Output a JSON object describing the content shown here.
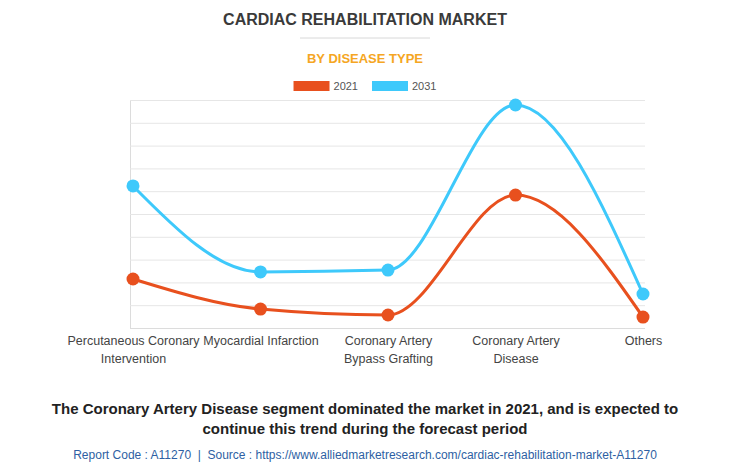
{
  "chart_data": {
    "type": "line",
    "title": "CARDIAC REHABILITATION MARKET",
    "subtitle": "BY DISEASE TYPE",
    "categories": [
      "Percutaneous Coronary Intervention",
      "Myocardial Infarction",
      "Coronary Artery Bypass Grafting",
      "Coronary Artery Disease",
      "Others"
    ],
    "series": [
      {
        "name": "2021",
        "color": "#e8501e",
        "values": [
          21.5,
          8.3,
          5.7,
          58.3,
          4.8
        ]
      },
      {
        "name": "2031",
        "color": "#3ec9fb",
        "values": [
          62.3,
          24.6,
          25.4,
          97.8,
          14.9
        ]
      }
    ],
    "ylim": [
      0,
      100
    ],
    "yticks": [
      0,
      10,
      20,
      30,
      40,
      50,
      60,
      70,
      80,
      90,
      100
    ],
    "grid": true,
    "tick_labels": "x",
    "legend": "top",
    "marker": "circle",
    "annotations": [
      "The Coronary Artery Disease segment dominated the market in 2021, and is expected to continue this trend during the forecast period",
      "Report Code : A11270  |  Source : https://www.alliedmarketresearch.com/cardiac-rehabilitation-market-A11270"
    ]
  }
}
